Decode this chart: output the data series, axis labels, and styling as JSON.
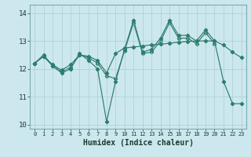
{
  "xlabel": "Humidex (Indice chaleur)",
  "bg_color": "#cce8ee",
  "line_color": "#2e7d6e",
  "grid_color": "#aacdd4",
  "line1_x": [
    0,
    1,
    2,
    3,
    4,
    5,
    6,
    7,
    8,
    9,
    10,
    11,
    12,
    13,
    14,
    15,
    16,
    17,
    18,
    19,
    20,
    21,
    22,
    23
  ],
  "line1_y": [
    12.2,
    12.5,
    12.1,
    11.85,
    12.0,
    12.55,
    12.3,
    12.0,
    10.1,
    11.55,
    12.7,
    13.75,
    12.6,
    12.7,
    13.1,
    13.75,
    13.2,
    13.2,
    13.0,
    13.4,
    13.0,
    11.55,
    10.75,
    10.75
  ],
  "line2_x": [
    0,
    1,
    2,
    3,
    4,
    5,
    6,
    7,
    8,
    9,
    10,
    11,
    12,
    13,
    14,
    15,
    16,
    17,
    18,
    19,
    20,
    21,
    22,
    23
  ],
  "line2_y": [
    12.2,
    12.45,
    12.15,
    11.95,
    12.15,
    12.5,
    12.45,
    12.3,
    11.85,
    12.55,
    12.75,
    12.78,
    12.82,
    12.86,
    12.88,
    12.92,
    12.95,
    12.98,
    13.0,
    13.0,
    13.0,
    12.85,
    12.6,
    12.4
  ],
  "line3_x": [
    0,
    1,
    2,
    3,
    4,
    5,
    6,
    7,
    8,
    9,
    10,
    11,
    12,
    13,
    14,
    15,
    16,
    17,
    18,
    19,
    20
  ],
  "line3_y": [
    12.2,
    12.45,
    12.1,
    11.9,
    12.05,
    12.5,
    12.4,
    12.2,
    11.75,
    11.65,
    12.65,
    13.65,
    12.55,
    12.6,
    13.0,
    13.65,
    13.1,
    13.1,
    12.9,
    13.3,
    12.9
  ],
  "ylim": [
    9.85,
    14.3
  ],
  "yticks": [
    10,
    11,
    12,
    13,
    14
  ],
  "xlim": [
    -0.5,
    23.5
  ],
  "xticks": [
    0,
    1,
    2,
    3,
    4,
    5,
    6,
    7,
    8,
    9,
    10,
    11,
    12,
    13,
    14,
    15,
    16,
    17,
    18,
    19,
    20,
    21,
    22,
    23
  ]
}
